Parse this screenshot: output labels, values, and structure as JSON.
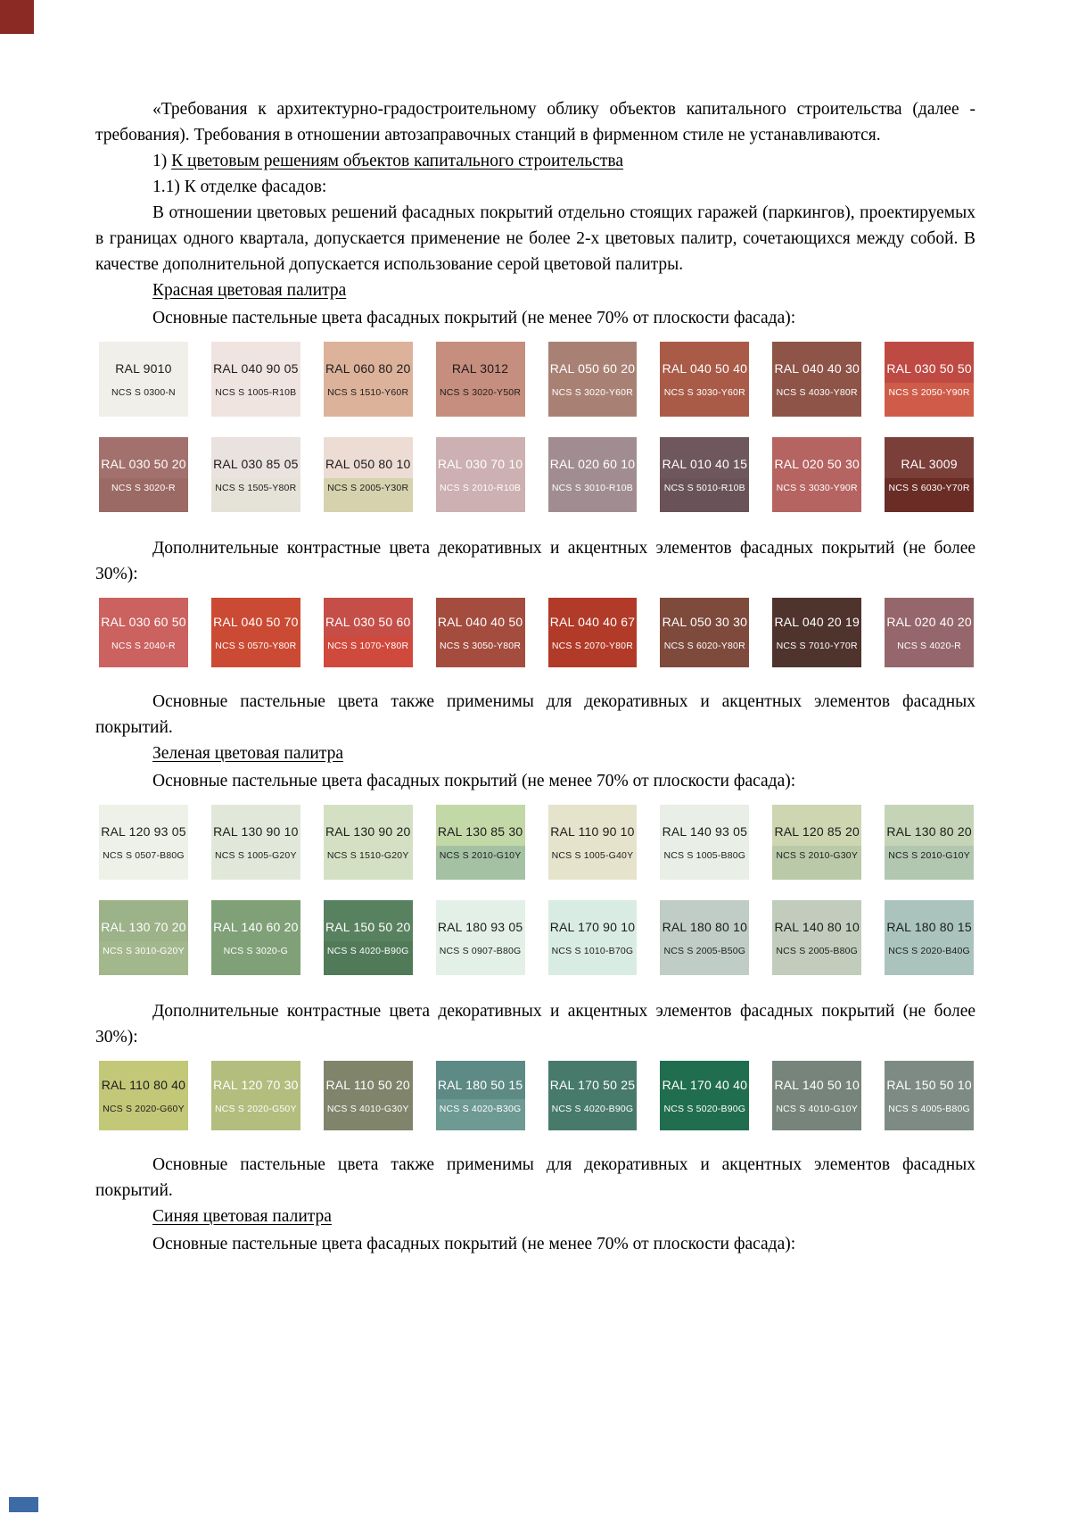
{
  "page": {
    "background": "#ffffff",
    "edge_artifacts": {
      "top_left_color": "#8b2a24",
      "bottom_left_color": "#3c6ba6"
    }
  },
  "intro": {
    "paragraph1": "«Требования к архитектурно-градостроительному облику объектов капитального строительства (далее - требования). Требования в отношении автозаправочных станций в фирменном стиле не устанавливаются.",
    "item1_prefix": "1) ",
    "item1_title": "К цветовым решениям объектов капитального строительства",
    "item11": "1.1) К отделке фасадов:",
    "paragraph2": "В отношении цветовых решений фасадных покрытий отдельно стоящих гаражей (паркингов), проектируемых в границах одного квартала, допускается применение не более 2-х цветовых палитр, сочетающихся между собой. В качестве дополнительной допускается использование серой цветовой палитры."
  },
  "shared_labels": {
    "main_colors_label": "Основные пастельные цвета фасадных покрытий (не менее 70% от плоскости фасада):",
    "contrast_colors_label": "Дополнительные контрастные цвета декоративных и акцентных элементов фасадных покрытий (не более 30%):",
    "note": "Основные пастельные цвета также применимы для декоративных и акцентных элементов фасадных покрытий."
  },
  "palettes": [
    {
      "title": "Красная цветовая палитра",
      "main_rows": [
        [
          {
            "ral": "RAL 9010",
            "ncs": "NCS S 0300-N",
            "bg": "#f1efe9",
            "fg": "#1c1c1c"
          },
          {
            "ral": "RAL 040 90 05",
            "ncs": "NCS S 1005-R10B",
            "bg": "#f0e4e1",
            "fg": "#1c1c1c"
          },
          {
            "ral": "RAL 060 80 20",
            "ncs": "NCS S 1510-Y60R",
            "bg": "#dcb29a",
            "fg": "#1c1c1c"
          },
          {
            "ral": "RAL 3012",
            "ncs": "NCS S 3020-Y50R",
            "bg": "#c68e7e",
            "fg": "#1c1c1c"
          },
          {
            "ral": "RAL 050 60 20",
            "ncs": "NCS S 3020-Y60R",
            "bg": "#a98174",
            "fg": "#ffffff"
          },
          {
            "ral": "RAL 040 50 40",
            "ncs": "NCS S 3030-Y60R",
            "bg": "#a95b47",
            "fg": "#ffffff"
          },
          {
            "ral": "RAL 040 40 30",
            "ncs": "NCS S 4030-Y80R",
            "bg": "#8e5448",
            "fg": "#ffffff"
          },
          {
            "ral": "RAL 030 50 50",
            "ncs": "NCS S 2050-Y90R",
            "bg": "#bf4a44",
            "bg2": "#cf5c49",
            "fg": "#ffffff"
          }
        ],
        [
          {
            "ral": "RAL 030 50 20",
            "ncs": "NCS S 3020-R",
            "bg": "#a3716d",
            "bg2": "#9c6a65",
            "fg": "#ffffff"
          },
          {
            "ral": "RAL 030 85 05",
            "ncs": "NCS S 1505-Y80R",
            "bg": "#e9e2df",
            "bg2": "#e5e2d8",
            "fg": "#1c1c1c"
          },
          {
            "ral": "RAL 050 80 10",
            "ncs": "NCS S 2005-Y30R",
            "bg": "#ecdcd3",
            "bg2": "#d6d2ae",
            "fg": "#1c1c1c"
          },
          {
            "ral": "RAL 030 70 10",
            "ncs": "NCS S 2010-R10B",
            "bg": "#cdb0b1",
            "fg": "#ffffff"
          },
          {
            "ral": "RAL 020 60 10",
            "ncs": "NCS S 3010-R10B",
            "bg": "#a18d91",
            "fg": "#ffffff"
          },
          {
            "ral": "RAL 010 40 15",
            "ncs": "NCS S 5010-R10B",
            "bg": "#6e575d",
            "bg2": "#695359",
            "fg": "#ffffff"
          },
          {
            "ral": "RAL 020 50 30",
            "ncs": "NCS S 3030-Y90R",
            "bg": "#b66461",
            "fg": "#ffffff"
          },
          {
            "ral": "RAL 3009",
            "ncs": "NCS S 6030-Y70R",
            "bg": "#7b3f3a",
            "bg2": "#6a2d26",
            "fg": "#ffffff"
          }
        ]
      ],
      "contrast_rows": [
        [
          {
            "ral": "RAL 030 60 50",
            "ncs": "NCS S 2040-R",
            "bg": "#cb6260",
            "fg": "#ffffff"
          },
          {
            "ral": "RAL 040 50 70",
            "ncs": "NCS S 0570-Y80R",
            "bg": "#cb4a33",
            "fg": "#ffffff"
          },
          {
            "ral": "RAL 030 50 60",
            "ncs": "NCS S 1070-Y80R",
            "bg": "#c54f48",
            "bg2": "#d0493d",
            "fg": "#ffffff"
          },
          {
            "ral": "RAL 040 40 50",
            "ncs": "NCS S 3050-Y80R",
            "bg": "#a44d3f",
            "fg": "#ffffff"
          },
          {
            "ral": "RAL 040 40 67",
            "ncs": "NCS S 2070-Y80R",
            "bg": "#b23a28",
            "fg": "#ffffff"
          },
          {
            "ral": "RAL 050 30 30",
            "ncs": "NCS S 6020-Y80R",
            "bg": "#7e4a3c",
            "fg": "#ffffff"
          },
          {
            "ral": "RAL 040 20 19",
            "ncs": "NCS S 7010-Y70R",
            "bg": "#4f332d",
            "fg": "#ffffff"
          },
          {
            "ral": "RAL 020 40 20",
            "ncs": "NCS S 4020-R",
            "bg": "#95666b",
            "fg": "#ffffff"
          }
        ]
      ]
    },
    {
      "title": "Зеленая цветовая палитра",
      "main_rows": [
        [
          {
            "ral": "RAL 120 93 05",
            "ncs": "NCS S 0507-B80G",
            "bg": "#eef1e8",
            "fg": "#1c1c1c"
          },
          {
            "ral": "RAL 130 90 10",
            "ncs": "NCS S 1005-G20Y",
            "bg": "#e1e8d9",
            "fg": "#1c1c1c"
          },
          {
            "ral": "RAL 130 90 20",
            "ncs": "NCS S 1510-G20Y",
            "bg": "#d4e0c3",
            "fg": "#1c1c1c"
          },
          {
            "ral": "RAL 130 85 30",
            "ncs": "NCS S 2010-G10Y",
            "bg": "#c3d8a7",
            "bg2": "#a4c2a3",
            "fg": "#1c1c1c"
          },
          {
            "ral": "RAL 110 90 10",
            "ncs": "NCS S 1005-G40Y",
            "bg": "#e6e3cc",
            "fg": "#1c1c1c"
          },
          {
            "ral": "RAL 140 93 05",
            "ncs": "NCS S 1005-B80G",
            "bg": "#e9eee7",
            "fg": "#1c1c1c"
          },
          {
            "ral": "RAL 120 85 20",
            "ncs": "NCS S 2010-G30Y",
            "bg": "#cdd6b1",
            "bg2": "#bac9a7",
            "fg": "#1c1c1c"
          },
          {
            "ral": "RAL 130 80 20",
            "ncs": "NCS S 2010-G10Y",
            "bg": "#c5d4b6",
            "bg2": "#b1c7b0",
            "fg": "#1c1c1c"
          }
        ],
        [
          {
            "ral": "RAL 130 70 20",
            "ncs": "NCS S 3010-G20Y",
            "bg": "#9cb288",
            "bg2": "#a3b78d",
            "fg": "#ffffff"
          },
          {
            "ral": "RAL 140 60 20",
            "ncs": "NCS S 3020-G",
            "bg": "#80a178",
            "fg": "#ffffff"
          },
          {
            "ral": "RAL 150 50 20",
            "ncs": "NCS S 4020-B90G",
            "bg": "#588160",
            "bg2": "#507a58",
            "fg": "#ffffff"
          },
          {
            "ral": "RAL 180 93 05",
            "ncs": "NCS S 0907-B80G",
            "bg": "#e3f0e8",
            "fg": "#1c1c1c"
          },
          {
            "ral": "RAL 170 90 10",
            "ncs": "NCS S 1010-B70G",
            "bg": "#d9ece3",
            "fg": "#1c1c1c"
          },
          {
            "ral": "RAL 180 80 10",
            "ncs": "NCS S 2005-B50G",
            "bg": "#c0cdc7",
            "fg": "#1c1c1c"
          },
          {
            "ral": "RAL 140 80 10",
            "ncs": "NCS S 2005-B80G",
            "bg": "#c1ccbc",
            "fg": "#1c1c1c"
          },
          {
            "ral": "RAL 180 80 15",
            "ncs": "NCS S 2020-B40G",
            "bg": "#aac4bd",
            "fg": "#1c1c1c"
          }
        ]
      ],
      "contrast_rows": [
        [
          {
            "ral": "RAL 110 80 40",
            "ncs": "NCS S 2020-G60Y",
            "bg": "#c3c878",
            "fg": "#1c1c1c"
          },
          {
            "ral": "RAL 120 70 30",
            "ncs": "NCS S 2020-G50Y",
            "bg": "#b2bd7e",
            "fg": "#ffffff"
          },
          {
            "ral": "RAL 110 50 20",
            "ncs": "NCS S 4010-G30Y",
            "bg": "#80846b",
            "fg": "#ffffff"
          },
          {
            "ral": "RAL 180 50 15",
            "ncs": "NCS S 4020-B30G",
            "bg": "#5e8a85",
            "bg2": "#6d9a93",
            "fg": "#ffffff"
          },
          {
            "ral": "RAL 170 50 25",
            "ncs": "NCS S 4020-B90G",
            "bg": "#477a6b",
            "fg": "#ffffff"
          },
          {
            "ral": "RAL 170 40 40",
            "ncs": "NCS S 5020-B90G",
            "bg": "#206e4f",
            "fg": "#ffffff"
          },
          {
            "ral": "RAL 140 50 10",
            "ncs": "NCS S 4010-G10Y",
            "bg": "#77847b",
            "fg": "#ffffff"
          },
          {
            "ral": "RAL 150 50 10",
            "ncs": "NCS S 4005-B80G",
            "bg": "#7e8b85",
            "fg": "#ffffff"
          }
        ]
      ]
    }
  ],
  "blue_palette": {
    "title": "Синяя цветовая палитра"
  }
}
